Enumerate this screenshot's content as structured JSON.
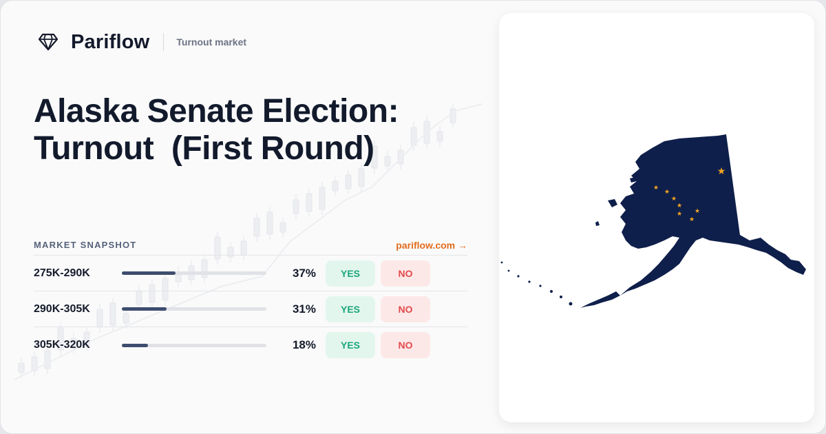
{
  "brand": {
    "logo_icon": "diamond-icon",
    "name": "Pariflow",
    "tagline": "Turnout market"
  },
  "title": {
    "line1": "Alaska Senate Election:",
    "line2": "Turnout  (First Round)"
  },
  "snapshot": {
    "heading": "MARKET SNAPSHOT",
    "link": "pariflow.com →",
    "rows": [
      {
        "range": "275K-290K",
        "percent": "37%",
        "probability": 0.37,
        "yes": "YES",
        "no": "NO"
      },
      {
        "range": "290K-305K",
        "percent": "31%",
        "probability": 0.31,
        "yes": "YES",
        "no": "NO"
      },
      {
        "range": "305K-320K",
        "percent": "18%",
        "probability": 0.18,
        "yes": "YES",
        "no": "NO"
      }
    ]
  },
  "map": {
    "region": "Alaska",
    "flag_fill": "#0f1f4b",
    "star_color": "#f5a623"
  },
  "colors": {
    "accent": "#e26d1d",
    "yes": "#1aa57a",
    "no": "#e2494b",
    "bar_fill": "#3e4d6e"
  }
}
